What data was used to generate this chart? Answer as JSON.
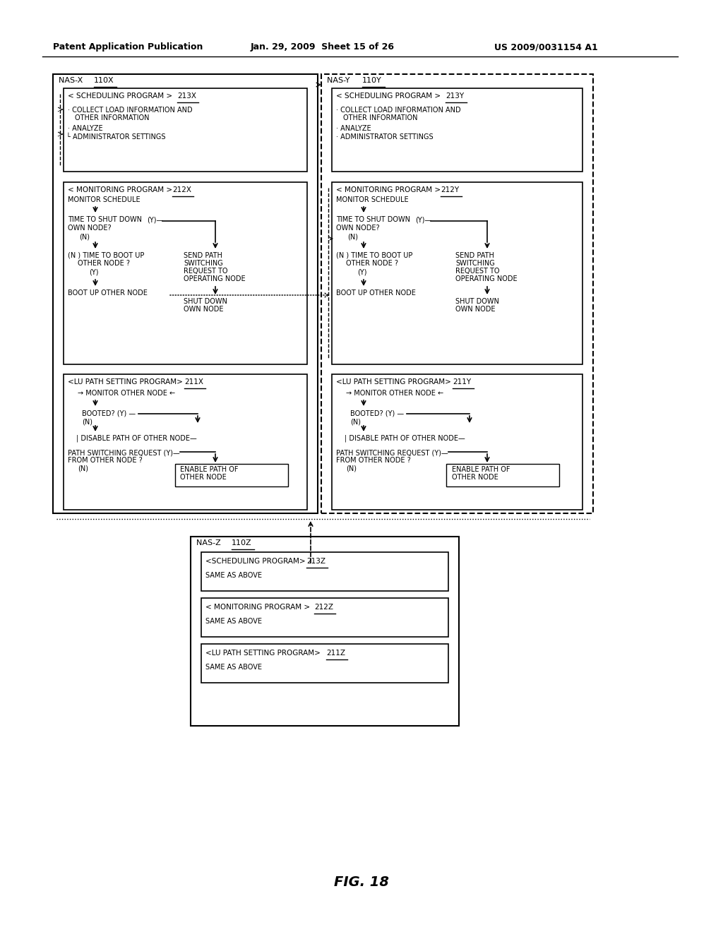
{
  "title_left": "Patent Application Publication",
  "title_center": "Jan. 29, 2009  Sheet 15 of 26",
  "title_right": "US 2009/0031154 A1",
  "fig_label": "FIG. 18",
  "bg_color": "#ffffff",
  "text_color": "#000000"
}
